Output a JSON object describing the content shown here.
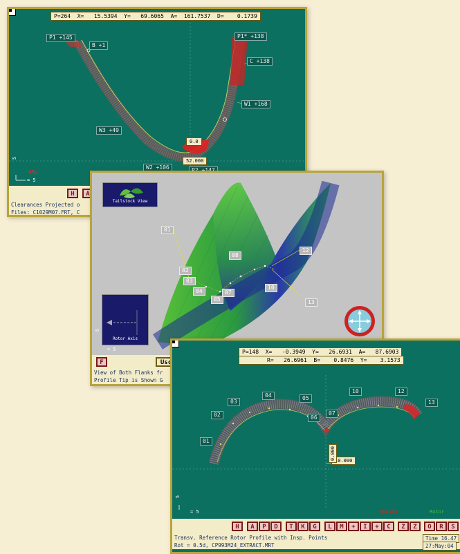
{
  "top": {
    "readout": "P=264  X=   15.5394  Y=   69.6065  A=  161.7537  D=    0.1739",
    "labels": {
      "p1": "P1 +145",
      "b": "B +1",
      "p1s": "P1* +138",
      "c": "C +138",
      "w1": "W1 +168",
      "w3": "W3 +49",
      "w2": "W2 +106",
      "p2": "P2 +147",
      "dim": "52.000",
      "dimv": "0.0",
      "red": "-45p",
      "scale": "= 5",
      "axis": "5"
    },
    "toolbar": [
      "H",
      "A"
    ],
    "status1": "Clearances Projected o",
    "status2": "Files: C1029M07.FRT, C"
  },
  "mid": {
    "tailstock": "Tailstock View",
    "rotor_axis": "Rotor Axis",
    "axis": "5",
    "scale": "= 5",
    "labels": {
      "p01": "01",
      "p02": "02",
      "p03": "03",
      "p04": "04",
      "p05": "05",
      "p07": "07",
      "p08": "08",
      "p10": "10",
      "p12": "12",
      "p13": "13"
    },
    "toolbar": [
      "F",
      "Usc"
    ],
    "status1": "View of Both Flanks fr",
    "status2": "Profile Tip is Shown G"
  },
  "bot": {
    "readout1": "P=148  X=   -0.3949  Y=   26.6931  A=   87.6903",
    "readout2": "R=   26.6961  B=    0.8476  Y=    3.1573",
    "labels": {
      "p01": "01",
      "p02": "02",
      "p03": "03",
      "p04": "04",
      "p05": "05",
      "p06": "06",
      "p07": "07",
      "p10": "10",
      "p12": "12",
      "p13": "13"
    },
    "dim_h": "10.000",
    "dim_v": "0.000",
    "axis": "5",
    "scale": "= 5",
    "legend_red": "Housin",
    "legend_green": "Rotor",
    "toolbar": [
      "H",
      "A",
      "P",
      "D",
      "T",
      "K",
      "G",
      "L",
      "M",
      "+",
      "I",
      "+",
      "C",
      "Z",
      "Z",
      "O",
      "R",
      "S",
      "O"
    ],
    "status1": "Transv. Reference Rotor Profile with Insp. Points",
    "status2": "Rot =  0.5d, CP993M24_EXTRACT.MRT",
    "time": "Time 16.47",
    "date": "27:May:04"
  },
  "colors": {
    "teal": "#0c7060",
    "frame": "#b8a43a",
    "red": "#e02020",
    "green": "#40c040"
  }
}
